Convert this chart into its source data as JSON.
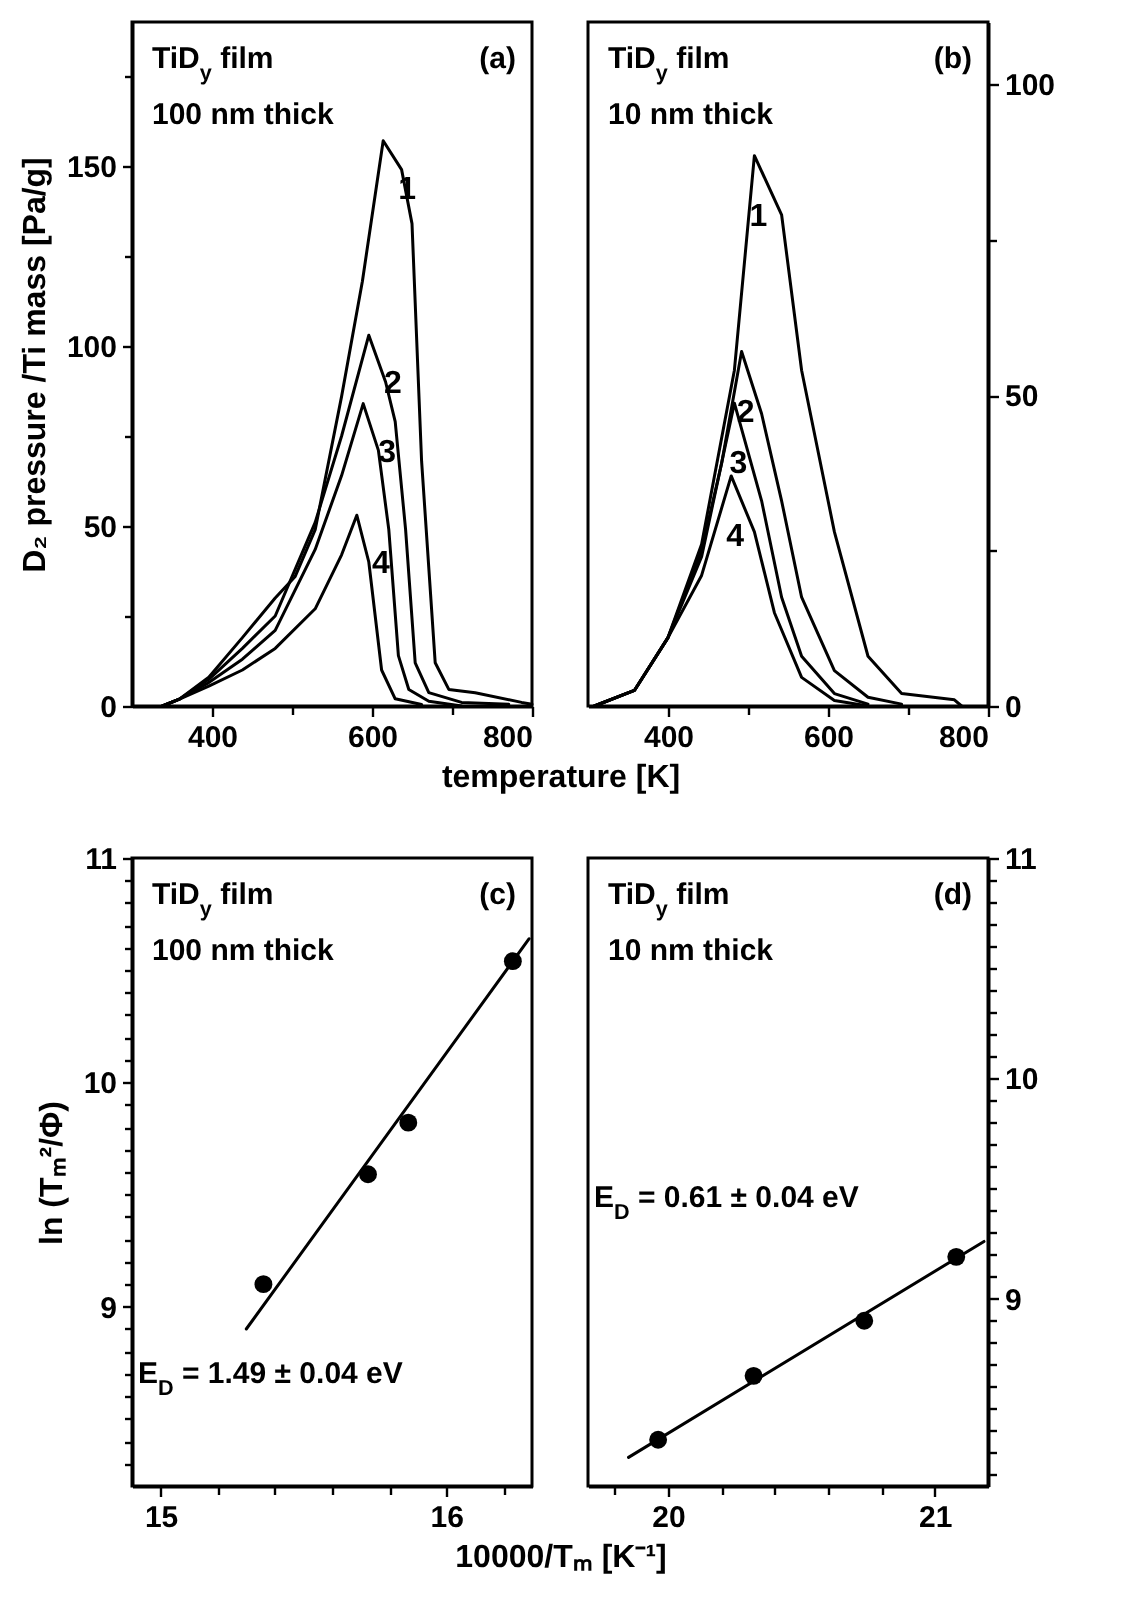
{
  "chart_data": [
    {
      "type": "line",
      "xlabel": "temperature [K]",
      "ylabel": "D₂ pressure /Ti mass [Pa/g]",
      "annotations": [
        "TiD$_{y}$ film",
        "100 nm thick",
        "(a)"
      ],
      "xlim": [
        300,
        800
      ],
      "xticks": [
        400,
        {
          "value": 500,
          "label": null
        },
        600,
        {
          "value": 700,
          "label": null
        },
        800
      ],
      "ylim": [
        0,
        190
      ],
      "yticks": [
        0,
        {
          "value": 25,
          "label": null
        },
        50,
        {
          "value": 75,
          "label": null
        },
        100,
        {
          "value": 125,
          "label": null
        },
        150,
        {
          "value": 175,
          "label": null
        }
      ],
      "series": [
        {
          "name": "1",
          "color": "#000000",
          "x": [
            338,
            360,
            396,
            438,
            479,
            504,
            529,
            562,
            588,
            604,
            614,
            637,
            650,
            662,
            679,
            696,
            729,
            787,
            800
          ],
          "values": [
            0,
            2,
            8,
            19,
            30,
            36,
            49,
            86,
            118,
            142,
            157,
            149,
            134,
            68,
            12,
            4.6,
            3.7,
            1,
            0.5
          ]
        },
        {
          "name": "2",
          "color": "#000000",
          "x": [
            338,
            360,
            396,
            438,
            479,
            529,
            562,
            596,
            617,
            629,
            642,
            654,
            671,
            712,
            771
          ],
          "values": [
            0,
            2,
            7.4,
            16,
            25,
            51,
            75,
            103,
            90,
            79,
            49,
            12,
            3.7,
            1,
            0.5
          ]
        },
        {
          "name": "3",
          "color": "#000000",
          "x": [
            338,
            360,
            396,
            438,
            479,
            529,
            562,
            589,
            608,
            621,
            633,
            646,
            671,
            712
          ],
          "values": [
            0,
            2,
            6.5,
            13,
            21,
            43.5,
            64,
            84,
            71,
            49,
            14,
            4.6,
            1.3,
            0
          ]
        },
        {
          "name": "4",
          "color": "#000000",
          "x": [
            338,
            360,
            396,
            438,
            479,
            529,
            562,
            581,
            596,
            612,
            629,
            662
          ],
          "values": [
            0,
            2,
            5.5,
            10,
            16,
            27,
            42,
            53,
            40,
            10,
            2,
            0.4
          ]
        }
      ]
    },
    {
      "type": "line",
      "annotations": [
        "TiD$_{y}$ film",
        "10 nm thick",
        "(b)"
      ],
      "xlim": [
        300,
        800
      ],
      "xticks": [
        400,
        {
          "value": 500,
          "label": null
        },
        600,
        {
          "value": 700,
          "label": null
        },
        800
      ],
      "ylim": [
        0,
        110
      ],
      "yticks": [
        0,
        {
          "value": 25,
          "label": null
        },
        50,
        {
          "value": 75,
          "label": null
        },
        100
      ],
      "series": [
        {
          "name": "1",
          "color": "#000000",
          "x": [
            308,
            358,
            400,
            442,
            483,
            508,
            542,
            567,
            608,
            650,
            692,
            758,
            767
          ],
          "values": [
            0,
            2.5,
            11,
            26,
            54,
            88.5,
            79,
            54,
            28,
            8,
            2,
            1,
            0
          ]
        },
        {
          "name": "2",
          "color": "#000000",
          "x": [
            308,
            358,
            400,
            442,
            467,
            492,
            517,
            542,
            567,
            608,
            650,
            692
          ],
          "values": [
            0,
            2.5,
            11,
            25,
            39,
            57,
            47,
            33,
            17.5,
            5.7,
            1.4,
            0.3
          ]
        },
        {
          "name": "3",
          "color": "#000000",
          "x": [
            308,
            358,
            400,
            442,
            483,
            517,
            542,
            567,
            608,
            650
          ],
          "values": [
            0,
            2.5,
            11,
            24,
            48.7,
            33,
            17.5,
            8,
            2,
            0.3
          ]
        },
        {
          "name": "4",
          "color": "#000000",
          "x": [
            308,
            358,
            400,
            442,
            479,
            508,
            533,
            567,
            608,
            650
          ],
          "values": [
            0,
            2.5,
            11,
            21,
            37,
            28,
            15,
            4.6,
            0.9,
            0
          ]
        }
      ]
    },
    {
      "type": "scatter",
      "xlabel": "10000/Tₘ [K⁻¹]",
      "ylabel": "ln (Tₘ²/Φ)",
      "annotations": [
        "TiD$_{y}$ film",
        "100 nm thick",
        "(c)",
        "E$_{D}$ = 1.49 ± 0.04 eV"
      ],
      "xlim": [
        14.9,
        16.3
      ],
      "xticks": [
        15,
        {
          "value": 15.2,
          "label": null
        },
        {
          "value": 15.4,
          "label": null
        },
        {
          "value": 15.6,
          "label": null
        },
        {
          "value": 15.8,
          "label": null
        },
        16,
        {
          "value": 16.2,
          "label": null
        }
      ],
      "ylim": [
        8.2,
        11
      ],
      "yticks": [
        {
          "value": 8.3,
          "label": null
        },
        {
          "value": 8.4,
          "label": null
        },
        {
          "value": 8.5,
          "label": null
        },
        {
          "value": 8.6,
          "label": null
        },
        {
          "value": 8.7,
          "label": null
        },
        {
          "value": 8.8,
          "label": null
        },
        {
          "value": 8.9,
          "label": null
        },
        9,
        {
          "value": 9.1,
          "label": null
        },
        {
          "value": 9.2,
          "label": null
        },
        {
          "value": 9.3,
          "label": null
        },
        {
          "value": 9.4,
          "label": null
        },
        {
          "value": 9.5,
          "label": null
        },
        {
          "value": 9.6,
          "label": null
        },
        {
          "value": 9.7,
          "label": null
        },
        {
          "value": 9.8,
          "label": null
        },
        {
          "value": 9.9,
          "label": null
        },
        10,
        {
          "value": 10.1,
          "label": null
        },
        {
          "value": 10.2,
          "label": null
        },
        {
          "value": 10.3,
          "label": null
        },
        {
          "value": 10.4,
          "label": null
        },
        {
          "value": 10.5,
          "label": null
        },
        {
          "value": 10.6,
          "label": null
        },
        {
          "value": 10.7,
          "label": null
        },
        {
          "value": 10.8,
          "label": null
        },
        {
          "value": 10.9,
          "label": null
        },
        11
      ],
      "series": [
        {
          "marker": "circle",
          "color": "#000000",
          "x": [
            15.36,
            15.726,
            15.867,
            16.233
          ],
          "values": [
            9.1,
            9.59,
            9.82,
            10.54
          ]
        },
        {
          "type": "line",
          "marker": "none",
          "color": "#000000",
          "x": [
            15.3,
            16.29
          ],
          "values": [
            8.9,
            10.64
          ]
        }
      ]
    },
    {
      "type": "scatter",
      "annotations": [
        "TiD$_{y}$ film",
        "10 nm thick",
        "(d)",
        "E$_{D}$ = 0.61 ± 0.04 eV"
      ],
      "xlim": [
        19.7,
        21.2
      ],
      "xticks": [
        {
          "value": 19.8,
          "label": null
        },
        20,
        {
          "value": 20.2,
          "label": null
        },
        {
          "value": 20.4,
          "label": null
        },
        {
          "value": 20.6,
          "label": null
        },
        {
          "value": 20.8,
          "label": null
        },
        21
      ],
      "ylim": [
        8.15,
        11
      ],
      "yticks": [
        {
          "value": 8.2,
          "label": null
        },
        {
          "value": 8.3,
          "label": null
        },
        {
          "value": 8.4,
          "label": null
        },
        {
          "value": 8.5,
          "label": null
        },
        {
          "value": 8.6,
          "label": null
        },
        {
          "value": 8.7,
          "label": null
        },
        {
          "value": 8.8,
          "label": null
        },
        {
          "value": 8.9,
          "label": null
        },
        9,
        {
          "value": 9.1,
          "label": null
        },
        {
          "value": 9.2,
          "label": null
        },
        {
          "value": 9.3,
          "label": null
        },
        {
          "value": 9.4,
          "label": null
        },
        {
          "value": 9.5,
          "label": null
        },
        {
          "value": 9.6,
          "label": null
        },
        {
          "value": 9.7,
          "label": null
        },
        {
          "value": 9.8,
          "label": null
        },
        {
          "value": 9.9,
          "label": null
        },
        10,
        {
          "value": 10.1,
          "label": null
        },
        {
          "value": 10.2,
          "label": null
        },
        {
          "value": 10.3,
          "label": null
        },
        {
          "value": 10.4,
          "label": null
        },
        {
          "value": 10.5,
          "label": null
        },
        {
          "value": 10.6,
          "label": null
        },
        {
          "value": 10.7,
          "label": null
        },
        {
          "value": 10.8,
          "label": null
        },
        {
          "value": 10.9,
          "label": null
        },
        11
      ],
      "series": [
        {
          "marker": "circle",
          "color": "#000000",
          "x": [
            19.963,
            20.321,
            20.736,
            21.081
          ],
          "values": [
            8.36,
            8.65,
            8.9,
            9.19
          ]
        },
        {
          "type": "line",
          "marker": "none",
          "color": "#000000",
          "x": [
            19.852,
            21.185
          ],
          "values": [
            8.28,
            9.26
          ]
        }
      ]
    }
  ]
}
